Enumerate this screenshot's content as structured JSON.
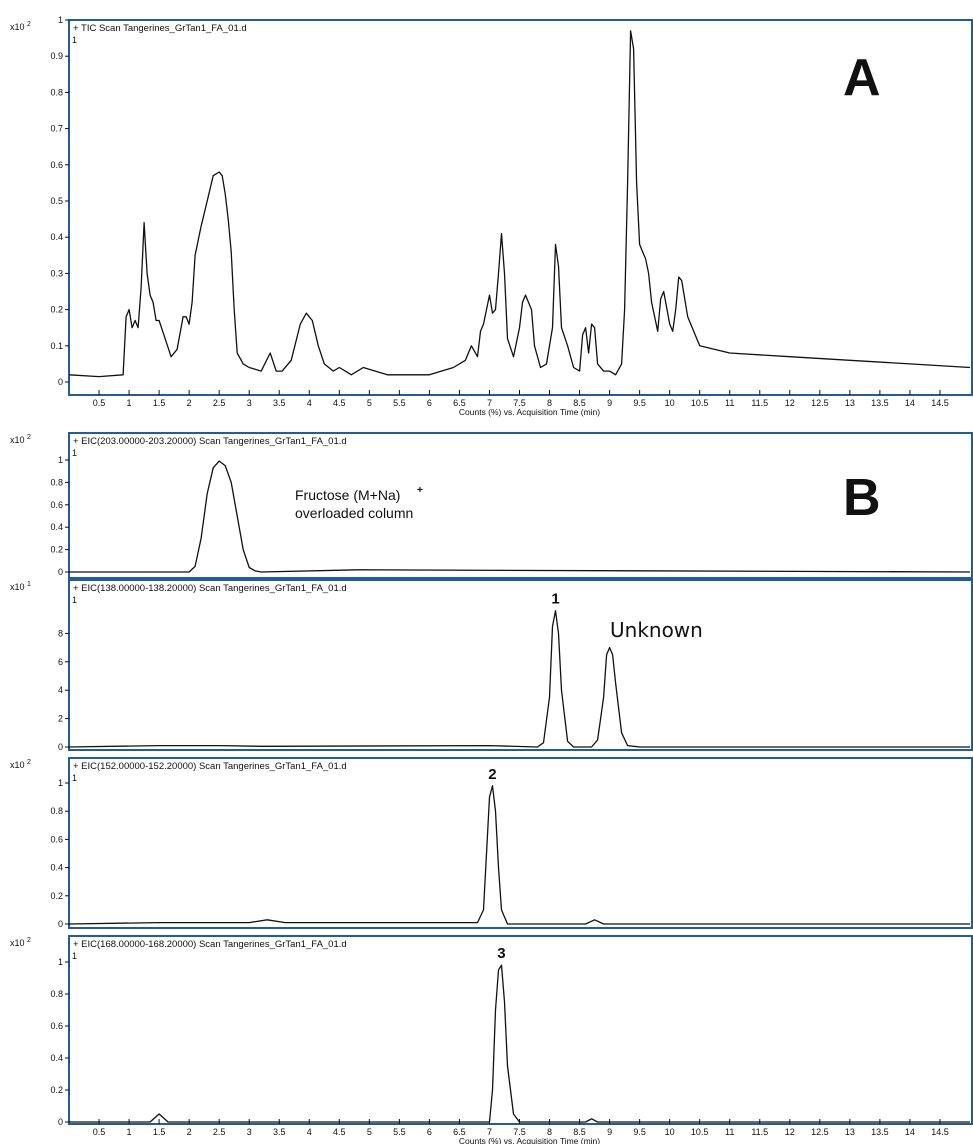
{
  "figure": {
    "panel_letters": [
      "A",
      "B"
    ]
  },
  "chart_data": [
    {
      "type": "line",
      "panel": "A",
      "trace_label": "+ TIC Scan Tangerines_GrTan1_FA_01.d",
      "y_multiplier_base": "x10",
      "y_multiplier_exp": "2",
      "y_top_marker": "1",
      "yticks": [
        "0",
        "0.1",
        "0.2",
        "0.3",
        "0.4",
        "0.5",
        "0.6",
        "0.7",
        "0.8",
        "0.9",
        "1"
      ],
      "ylim": [
        0,
        1
      ],
      "xlim": [
        0,
        15
      ],
      "xticks": [
        "0.5",
        "1",
        "1.5",
        "2",
        "2.5",
        "3",
        "3.5",
        "4",
        "4.5",
        "5",
        "5.5",
        "6",
        "6.5",
        "7",
        "7.5",
        "8",
        "8.5",
        "9",
        "9.5",
        "10",
        "10.5",
        "11",
        "11.5",
        "12",
        "12.5",
        "13",
        "13.5",
        "14",
        "14.5"
      ],
      "xlabel": "Counts (%) vs. Acquisition Time (min)",
      "x": [
        0,
        0.5,
        0.9,
        0.95,
        1.0,
        1.05,
        1.1,
        1.15,
        1.2,
        1.25,
        1.3,
        1.35,
        1.4,
        1.45,
        1.5,
        1.6,
        1.7,
        1.8,
        1.9,
        1.95,
        2.0,
        2.05,
        2.1,
        2.2,
        2.3,
        2.4,
        2.5,
        2.55,
        2.6,
        2.65,
        2.7,
        2.75,
        2.8,
        2.9,
        3.0,
        3.2,
        3.35,
        3.45,
        3.55,
        3.7,
        3.85,
        3.95,
        4.05,
        4.15,
        4.25,
        4.4,
        4.5,
        4.6,
        4.7,
        4.9,
        5.1,
        5.3,
        5.6,
        6.0,
        6.4,
        6.6,
        6.7,
        6.8,
        6.85,
        6.9,
        7.0,
        7.05,
        7.1,
        7.15,
        7.2,
        7.25,
        7.3,
        7.4,
        7.5,
        7.55,
        7.6,
        7.7,
        7.75,
        7.85,
        7.95,
        8.05,
        8.1,
        8.15,
        8.2,
        8.3,
        8.4,
        8.5,
        8.55,
        8.6,
        8.65,
        8.7,
        8.75,
        8.8,
        8.9,
        9.0,
        9.1,
        9.2,
        9.25,
        9.3,
        9.35,
        9.4,
        9.45,
        9.5,
        9.55,
        9.6,
        9.65,
        9.7,
        9.8,
        9.85,
        9.9,
        10.0,
        10.05,
        10.1,
        10.15,
        10.2,
        10.3,
        10.5,
        11.0,
        12.0,
        13.0,
        14.0,
        15.0
      ],
      "y": [
        0.02,
        0.015,
        0.02,
        0.18,
        0.2,
        0.15,
        0.17,
        0.15,
        0.26,
        0.44,
        0.3,
        0.24,
        0.22,
        0.17,
        0.17,
        0.12,
        0.07,
        0.09,
        0.18,
        0.18,
        0.16,
        0.22,
        0.35,
        0.43,
        0.5,
        0.57,
        0.58,
        0.57,
        0.52,
        0.45,
        0.36,
        0.2,
        0.08,
        0.05,
        0.04,
        0.03,
        0.08,
        0.03,
        0.03,
        0.06,
        0.16,
        0.19,
        0.17,
        0.1,
        0.05,
        0.03,
        0.04,
        0.03,
        0.02,
        0.04,
        0.03,
        0.02,
        0.02,
        0.02,
        0.04,
        0.06,
        0.1,
        0.07,
        0.14,
        0.16,
        0.24,
        0.19,
        0.2,
        0.3,
        0.41,
        0.3,
        0.12,
        0.07,
        0.15,
        0.22,
        0.24,
        0.2,
        0.1,
        0.04,
        0.05,
        0.15,
        0.38,
        0.32,
        0.15,
        0.1,
        0.04,
        0.03,
        0.13,
        0.15,
        0.08,
        0.16,
        0.15,
        0.05,
        0.03,
        0.03,
        0.02,
        0.05,
        0.2,
        0.55,
        0.97,
        0.92,
        0.55,
        0.38,
        0.36,
        0.34,
        0.3,
        0.22,
        0.14,
        0.23,
        0.25,
        0.16,
        0.14,
        0.2,
        0.29,
        0.28,
        0.18,
        0.1,
        0.08,
        0.07,
        0.06,
        0.05,
        0.04
      ]
    },
    {
      "type": "line",
      "panel": "B",
      "trace_label": "+ EIC(203.00000-203.20000) Scan Tangerines_GrTan1_FA_01.d",
      "y_multiplier_base": "x10",
      "y_multiplier_exp": "2",
      "y_top_marker": "1",
      "yticks": [
        "0",
        "0.2",
        "0.4",
        "0.6",
        "0.8",
        "1"
      ],
      "ylim": [
        0,
        1
      ],
      "xlim": [
        0,
        15
      ],
      "x": [
        0,
        1.0,
        2.0,
        2.1,
        2.2,
        2.3,
        2.4,
        2.5,
        2.6,
        2.7,
        2.8,
        2.9,
        3.0,
        3.1,
        3.2,
        4.8,
        15.0
      ],
      "y": [
        0,
        0,
        0,
        0.05,
        0.3,
        0.7,
        0.93,
        0.99,
        0.95,
        0.8,
        0.5,
        0.2,
        0.04,
        0.01,
        0,
        0.02,
        0
      ],
      "annotation_line1": "Fructose (M+Na)",
      "annotation_sup": "+",
      "annotation_line2": "overloaded column"
    },
    {
      "type": "line",
      "trace_label": "+ EIC(138.00000-138.20000) Scan Tangerines_GrTan1_FA_01.d",
      "y_multiplier_base": "x10",
      "y_multiplier_exp": "1",
      "y_top_marker": "1",
      "yticks": [
        "0",
        "2",
        "4",
        "6",
        "8"
      ],
      "ylim": [
        0,
        10
      ],
      "xlim": [
        0,
        15
      ],
      "x": [
        0,
        1.5,
        2.5,
        3.2,
        7.0,
        7.8,
        7.9,
        8.0,
        8.05,
        8.1,
        8.15,
        8.2,
        8.3,
        8.4,
        8.7,
        8.8,
        8.9,
        8.95,
        9.0,
        9.05,
        9.1,
        9.2,
        9.3,
        9.5,
        15.0
      ],
      "y": [
        0,
        0.1,
        0.1,
        0.05,
        0.1,
        0,
        0.3,
        3.5,
        8.5,
        9.6,
        8.0,
        4.0,
        0.4,
        0,
        0,
        0.5,
        3.5,
        6.5,
        7.0,
        6.5,
        4.5,
        1.0,
        0.1,
        0,
        0
      ],
      "peak_label": "1",
      "annotation": "Unknown"
    },
    {
      "type": "line",
      "trace_label": "+ EIC(152.00000-152.20000) Scan Tangerines_GrTan1_FA_01.d",
      "y_multiplier_base": "x10",
      "y_multiplier_exp": "2",
      "y_top_marker": "1",
      "yticks": [
        "0",
        "0.2",
        "0.4",
        "0.6",
        "0.8",
        "1"
      ],
      "ylim": [
        0,
        1
      ],
      "xlim": [
        0,
        15
      ],
      "x": [
        0,
        1.5,
        3.0,
        3.3,
        3.6,
        6.8,
        6.9,
        6.95,
        7.0,
        7.05,
        7.1,
        7.15,
        7.2,
        7.3,
        8.6,
        8.75,
        8.9,
        15.0
      ],
      "y": [
        0,
        0.01,
        0.01,
        0.03,
        0.01,
        0.01,
        0.1,
        0.5,
        0.9,
        0.98,
        0.8,
        0.4,
        0.1,
        0,
        0,
        0.03,
        0,
        0
      ],
      "peak_label": "2"
    },
    {
      "type": "line",
      "trace_label": "+ EIC(168.00000-168.20000) Scan Tangerines_GrTan1_FA_01.d",
      "y_multiplier_base": "x10",
      "y_multiplier_exp": "2",
      "y_top_marker": "1",
      "yticks": [
        "0",
        "0.2",
        "0.4",
        "0.6",
        "0.8",
        "1"
      ],
      "ylim": [
        0,
        1
      ],
      "xlim": [
        0,
        15
      ],
      "xticks": [
        "0.5",
        "1",
        "1.5",
        "2",
        "2.5",
        "3",
        "3.5",
        "4",
        "4.5",
        "5",
        "5.5",
        "6",
        "6.5",
        "7",
        "7.5",
        "8",
        "8.5",
        "9",
        "9.5",
        "10",
        "10.5",
        "11",
        "11.5",
        "12",
        "12.5",
        "13",
        "13.5",
        "14",
        "14.5"
      ],
      "xlabel": "Counts (%) vs. Acquisition Time (min)",
      "x": [
        0,
        1.35,
        1.5,
        1.65,
        3.0,
        7.0,
        7.05,
        7.1,
        7.15,
        7.2,
        7.25,
        7.3,
        7.4,
        7.5,
        8.6,
        8.7,
        8.8,
        15.0
      ],
      "y": [
        0,
        0,
        0.05,
        0,
        0,
        0,
        0.2,
        0.7,
        0.95,
        0.98,
        0.75,
        0.35,
        0.05,
        0,
        0,
        0.02,
        0,
        0
      ],
      "peak_label": "3"
    }
  ]
}
